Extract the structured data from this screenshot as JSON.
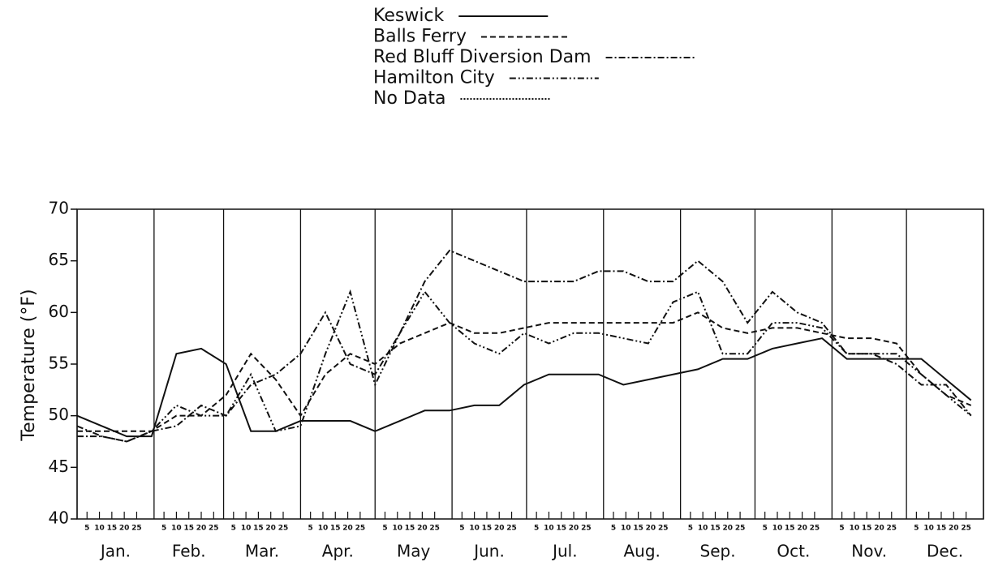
{
  "chart_data": {
    "type": "line",
    "y_label": "Temperature (°F)",
    "ylim": [
      40,
      70
    ],
    "yticks": [
      40,
      45,
      50,
      55,
      60,
      65,
      70
    ],
    "xlim": [
      1,
      366
    ],
    "month_ticks": [
      1,
      32,
      60,
      91,
      121,
      152,
      182,
      213,
      244,
      274,
      305,
      335,
      366
    ],
    "categories": [
      "Jan.",
      "Feb.",
      "Mar.",
      "Apr.",
      "May",
      "Jun.",
      "Jul.",
      "Aug.",
      "Sep.",
      "Oct.",
      "Nov.",
      "Dec."
    ],
    "xticks": [
      {
        "value": 5,
        "label": "5"
      },
      {
        "value": 10,
        "label": "10"
      },
      {
        "value": 15,
        "label": "15"
      },
      {
        "value": 20,
        "label": "20"
      },
      {
        "value": 25,
        "label": "25"
      },
      {
        "value": 36,
        "label": "5"
      },
      {
        "value": 41,
        "label": "10"
      },
      {
        "value": 46,
        "label": "15"
      },
      {
        "value": 51,
        "label": "20"
      },
      {
        "value": 56,
        "label": "25"
      },
      {
        "value": 64,
        "label": "5"
      },
      {
        "value": 69,
        "label": "10"
      },
      {
        "value": 74,
        "label": "15"
      },
      {
        "value": 79,
        "label": "20"
      },
      {
        "value": 84,
        "label": "25"
      },
      {
        "value": 95,
        "label": "5"
      },
      {
        "value": 100,
        "label": "10"
      },
      {
        "value": 105,
        "label": "15"
      },
      {
        "value": 110,
        "label": "20"
      },
      {
        "value": 115,
        "label": "25"
      },
      {
        "value": 125,
        "label": "5"
      },
      {
        "value": 130,
        "label": "10"
      },
      {
        "value": 135,
        "label": "15"
      },
      {
        "value": 140,
        "label": "20"
      },
      {
        "value": 145,
        "label": "25"
      },
      {
        "value": 156,
        "label": "5"
      },
      {
        "value": 161,
        "label": "10"
      },
      {
        "value": 166,
        "label": "15"
      },
      {
        "value": 171,
        "label": "20"
      },
      {
        "value": 176,
        "label": "25"
      },
      {
        "value": 186,
        "label": "5"
      },
      {
        "value": 191,
        "label": "10"
      },
      {
        "value": 196,
        "label": "15"
      },
      {
        "value": 201,
        "label": "20"
      },
      {
        "value": 206,
        "label": "25"
      },
      {
        "value": 217,
        "label": "5"
      },
      {
        "value": 222,
        "label": "10"
      },
      {
        "value": 227,
        "label": "15"
      },
      {
        "value": 232,
        "label": "20"
      },
      {
        "value": 237,
        "label": "25"
      },
      {
        "value": 248,
        "label": "5"
      },
      {
        "value": 253,
        "label": "10"
      },
      {
        "value": 258,
        "label": "15"
      },
      {
        "value": 263,
        "label": "20"
      },
      {
        "value": 268,
        "label": "25"
      },
      {
        "value": 278,
        "label": "5"
      },
      {
        "value": 283,
        "label": "10"
      },
      {
        "value": 288,
        "label": "15"
      },
      {
        "value": 293,
        "label": "20"
      },
      {
        "value": 298,
        "label": "25"
      },
      {
        "value": 309,
        "label": "5"
      },
      {
        "value": 314,
        "label": "10"
      },
      {
        "value": 319,
        "label": "15"
      },
      {
        "value": 324,
        "label": "20"
      },
      {
        "value": 329,
        "label": "25"
      },
      {
        "value": 339,
        "label": "5"
      },
      {
        "value": 344,
        "label": "10"
      },
      {
        "value": 349,
        "label": "15"
      },
      {
        "value": 354,
        "label": "20"
      },
      {
        "value": 359,
        "label": "25"
      }
    ],
    "x": [
      1,
      11,
      21,
      31,
      41,
      51,
      61,
      71,
      81,
      91,
      101,
      111,
      121,
      131,
      141,
      151,
      161,
      171,
      181,
      191,
      201,
      211,
      221,
      231,
      241,
      251,
      261,
      271,
      281,
      291,
      301,
      311,
      321,
      331,
      341,
      351,
      361
    ],
    "series": [
      {
        "name": "Keswick",
        "color": "#111",
        "style": "solid",
        "values": [
          50,
          49,
          48,
          48,
          56,
          56.5,
          55,
          48.5,
          48.5,
          49.5,
          49.5,
          49.5,
          48.5,
          49.5,
          50.5,
          50.5,
          51,
          51,
          53,
          54,
          54,
          54,
          53,
          53.5,
          54,
          54.5,
          55.5,
          55.5,
          56.5,
          57,
          57.5,
          55.5,
          55.5,
          55.5,
          55.5,
          53.5,
          51.5
        ]
      },
      {
        "name": "Balls Ferry",
        "color": "#111",
        "style": "dashed",
        "values": [
          48.5,
          48.5,
          48.5,
          48.5,
          50,
          50,
          52,
          56,
          53.5,
          50,
          54,
          56,
          55,
          57,
          58,
          59,
          58,
          58,
          58.5,
          59,
          59,
          59,
          59,
          59,
          59,
          60,
          58.5,
          58,
          58.5,
          58.5,
          58,
          57.5,
          57.5,
          57,
          54,
          52,
          51
        ]
      },
      {
        "name": "Red Bluff Diversion Dam",
        "color": "#111",
        "style": "dashdot",
        "values": [
          48,
          48,
          47.5,
          48.5,
          49,
          51,
          50,
          53,
          54,
          56,
          60,
          55,
          54,
          58,
          63,
          66,
          65,
          64,
          63,
          63,
          63,
          64,
          64,
          63,
          63,
          65,
          63,
          59,
          62,
          60,
          59,
          56,
          56,
          55,
          53,
          53,
          50
        ]
      },
      {
        "name": "Hamilton City",
        "color": "#111",
        "style": "dashdotdot",
        "values": [
          49,
          48,
          47.5,
          48.5,
          51,
          50,
          50,
          54,
          48.5,
          49,
          56,
          62,
          53,
          58,
          62,
          59,
          57,
          56,
          58,
          57,
          58,
          58,
          57.5,
          57,
          61,
          62,
          56,
          56,
          59,
          59,
          58.5,
          56,
          56,
          56,
          54,
          52,
          50
        ]
      }
    ],
    "legend_extra": [
      {
        "name": "No Data",
        "style": "dotted"
      }
    ]
  }
}
